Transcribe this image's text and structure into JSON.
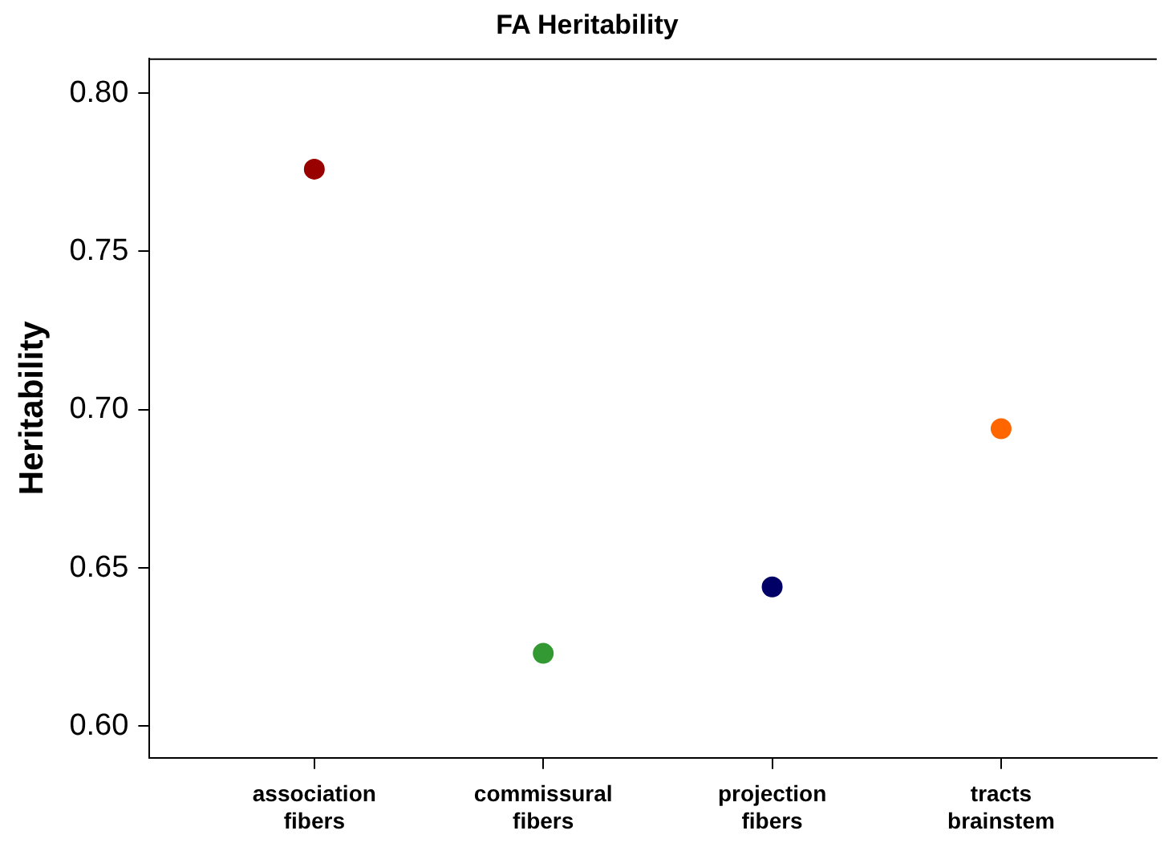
{
  "chart_data": {
    "type": "scatter",
    "title": "FA Heritability",
    "ylabel": "Heritability",
    "categories": [
      "association fibers",
      "commissural fibers",
      "projection fibers",
      "tracts brainstem"
    ],
    "values": [
      0.776,
      0.623,
      0.644,
      0.694
    ],
    "colors": [
      "#990000",
      "#339933",
      "#000066",
      "#ff6600"
    ],
    "ylim": [
      0.59,
      0.811
    ],
    "yticks": [
      {
        "value": 0.6,
        "label": "0.60"
      },
      0.65,
      {
        "value": 0.7,
        "label": "0.70"
      },
      0.75,
      {
        "value": 0.8,
        "label": "0.80"
      }
    ],
    "grid": false,
    "legend": false,
    "marker": "circle"
  }
}
